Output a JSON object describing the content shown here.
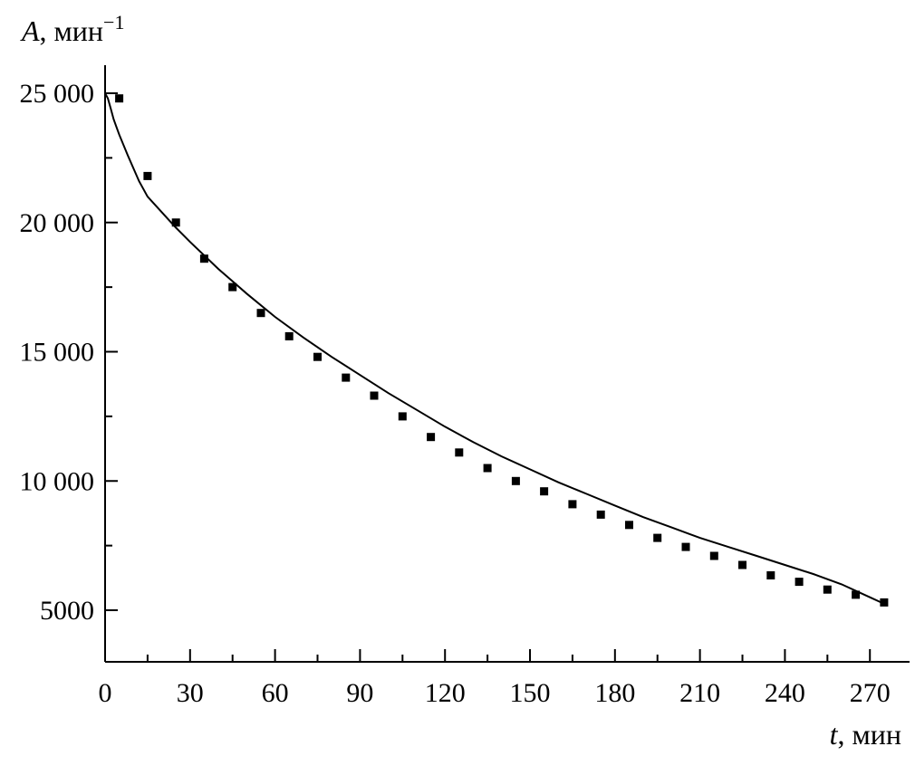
{
  "chart_data": {
    "type": "scatter",
    "xlabel": "t",
    "xlabel_unit": ", мин",
    "ylabel": "A",
    "ylabel_unit": ", мин",
    "ylabel_exponent": "−1",
    "xlim": [
      0,
      280
    ],
    "ylim": [
      3000,
      26000
    ],
    "x_ticks": [
      0,
      30,
      60,
      90,
      120,
      150,
      180,
      210,
      240,
      270
    ],
    "x_tick_labels": [
      "0",
      "30",
      "60",
      "90",
      "120",
      "150",
      "180",
      "210",
      "240",
      "270"
    ],
    "y_ticks": [
      5000,
      10000,
      15000,
      20000,
      25000
    ],
    "y_tick_labels": [
      "5000",
      "10 000",
      "15 000",
      "20 000",
      "25 000"
    ],
    "grid": false,
    "series": [
      {
        "type": "scatter",
        "marker": "square",
        "x": [
          5,
          15,
          25,
          35,
          45,
          55,
          65,
          75,
          85,
          95,
          105,
          115,
          125,
          135,
          145,
          155,
          165,
          175,
          185,
          195,
          205,
          215,
          225,
          235,
          245,
          255,
          265,
          275
        ],
        "y": [
          24800,
          21800,
          20000,
          18600,
          17500,
          16500,
          15600,
          14800,
          14000,
          13300,
          12500,
          11700,
          11100,
          10500,
          10000,
          9600,
          9100,
          8700,
          8300,
          7800,
          7450,
          7100,
          6750,
          6350,
          6100,
          5800,
          5600,
          5300
        ]
      },
      {
        "type": "line",
        "x": [
          0,
          1,
          2,
          3,
          5,
          8,
          12,
          15,
          20,
          25,
          30,
          40,
          50,
          60,
          70,
          80,
          90,
          100,
          110,
          120,
          130,
          140,
          150,
          160,
          170,
          180,
          190,
          200,
          210,
          220,
          230,
          240,
          250,
          260,
          270,
          275
        ],
        "y": [
          25000,
          24800,
          24400,
          24000,
          23400,
          22600,
          21600,
          21000,
          20400,
          19800,
          19250,
          18200,
          17250,
          16350,
          15550,
          14800,
          14100,
          13400,
          12750,
          12100,
          11500,
          10950,
          10450,
          9950,
          9500,
          9050,
          8600,
          8200,
          7800,
          7450,
          7100,
          6750,
          6400,
          6000,
          5500,
          5250
        ]
      }
    ]
  }
}
